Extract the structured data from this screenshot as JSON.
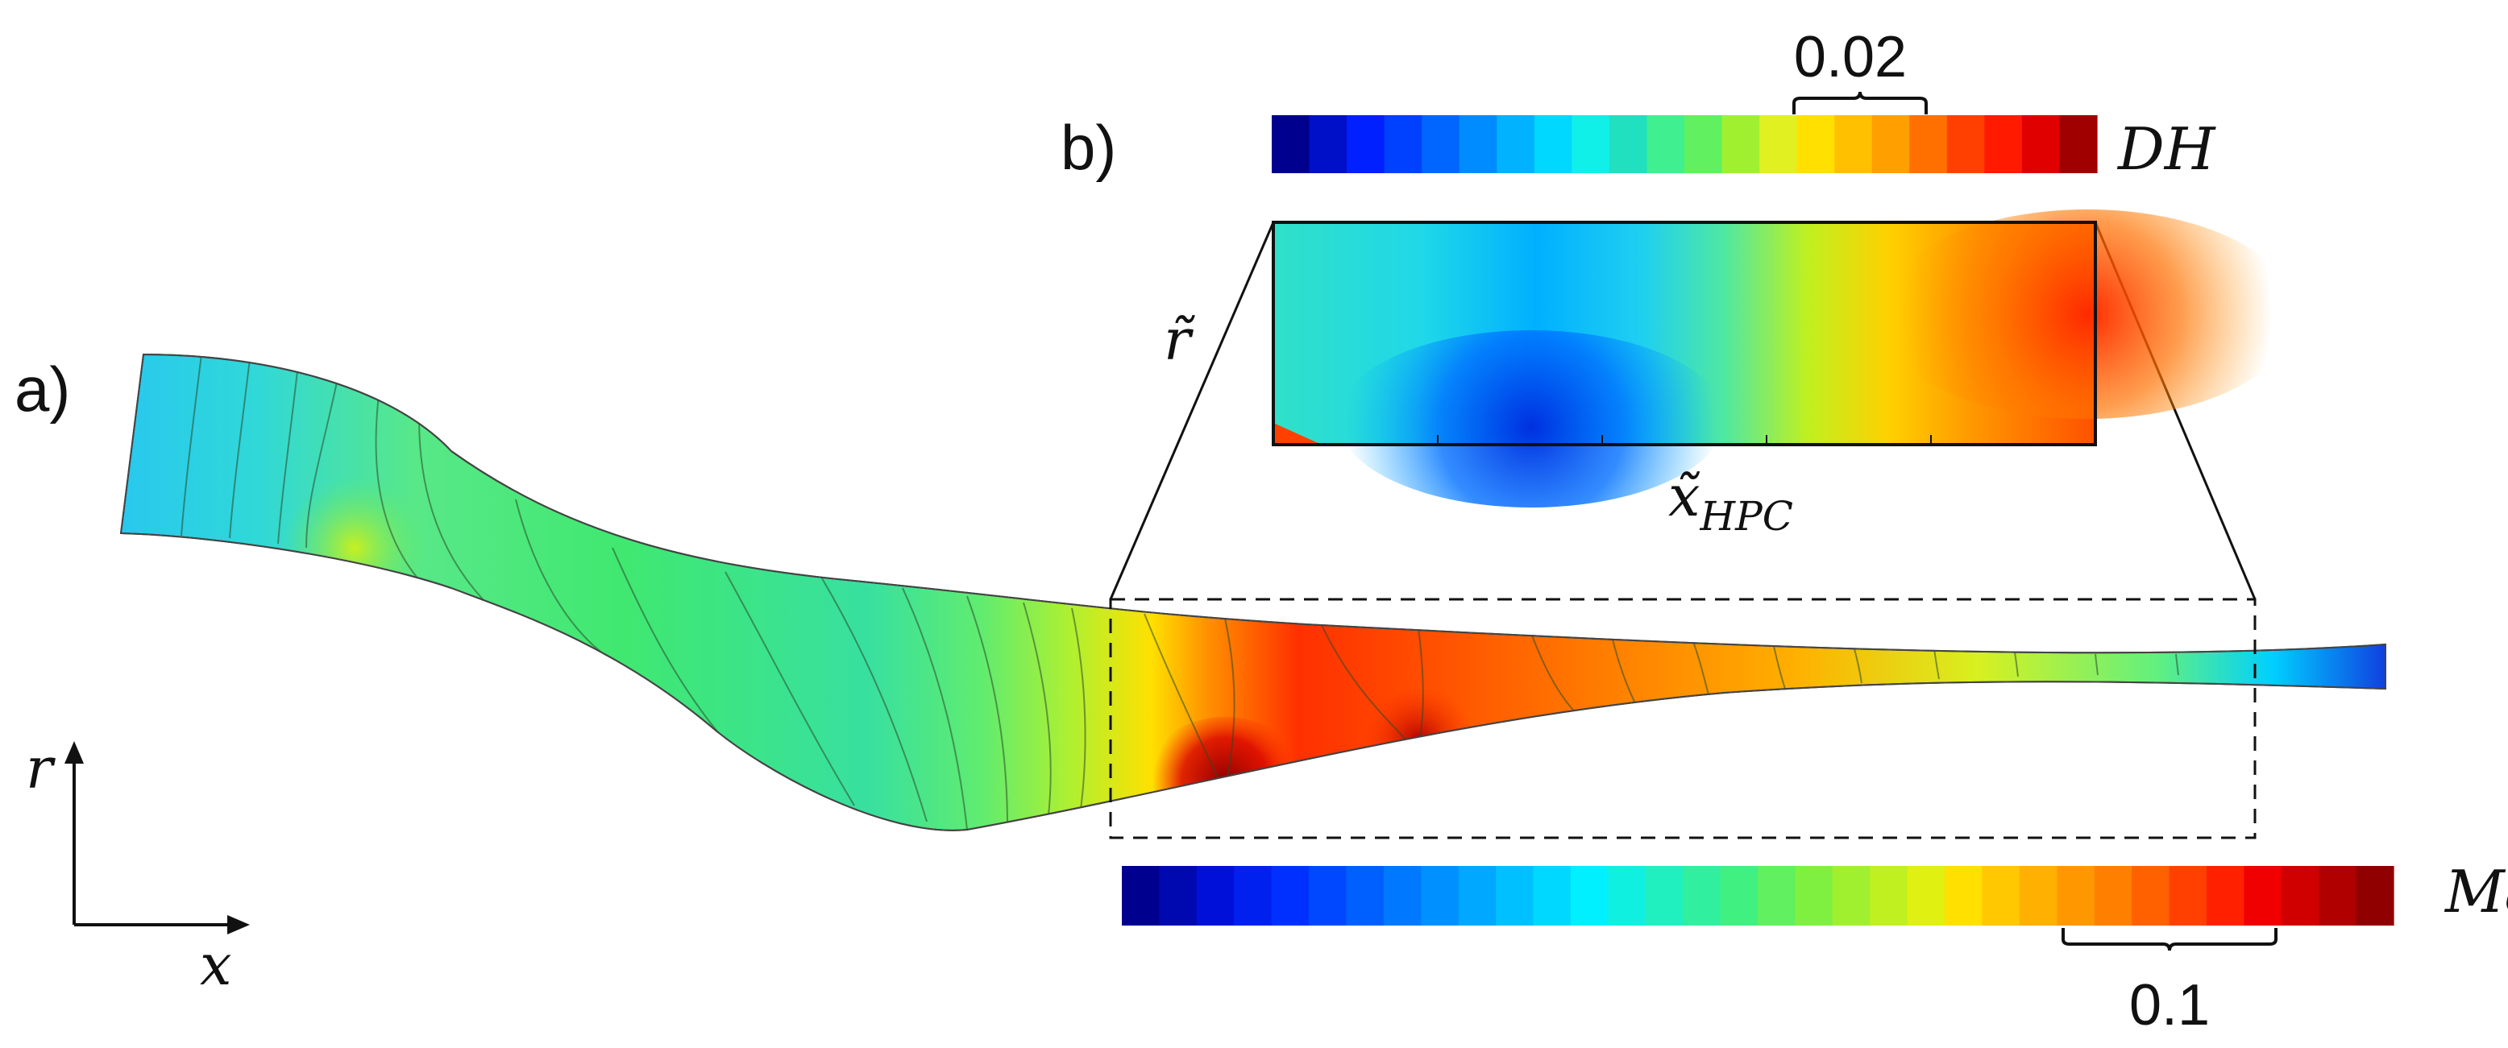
{
  "panels": {
    "a": "a)",
    "b": "b)"
  },
  "axes": {
    "x": "x",
    "r": "r",
    "r_tilde": "r̃",
    "x_tilde": "x̃",
    "x_sub": "HPC"
  },
  "colorbars": {
    "dh": {
      "label": "DH",
      "interval": "0.02",
      "colors": [
        "#00008f",
        "#0010c8",
        "#0020ff",
        "#0040ff",
        "#0066ff",
        "#008cff",
        "#00b2ff",
        "#00d8ff",
        "#10f0e8",
        "#20e0c0",
        "#40f090",
        "#60f060",
        "#a0f030",
        "#e0f020",
        "#ffe000",
        "#ffc000",
        "#ffa000",
        "#ff7000",
        "#ff4000",
        "#ff1a00",
        "#e00000",
        "#a00000"
      ]
    },
    "ma": {
      "label": "Ma",
      "interval": "0.1",
      "colors": [
        "#00008f",
        "#0008b0",
        "#0010d8",
        "#0020f0",
        "#0030ff",
        "#0048ff",
        "#0060ff",
        "#0078ff",
        "#0090ff",
        "#00a8ff",
        "#00c0ff",
        "#00d8ff",
        "#00f0ff",
        "#10f0e0",
        "#20f0c0",
        "#30f0a0",
        "#40f080",
        "#60f060",
        "#80f040",
        "#a0f030",
        "#c0f020",
        "#e0f010",
        "#ffe000",
        "#ffc800",
        "#ffb000",
        "#ff9800",
        "#ff8000",
        "#ff6000",
        "#ff4000",
        "#ff2000",
        "#f00000",
        "#d00000",
        "#b00000",
        "#900000"
      ]
    }
  }
}
